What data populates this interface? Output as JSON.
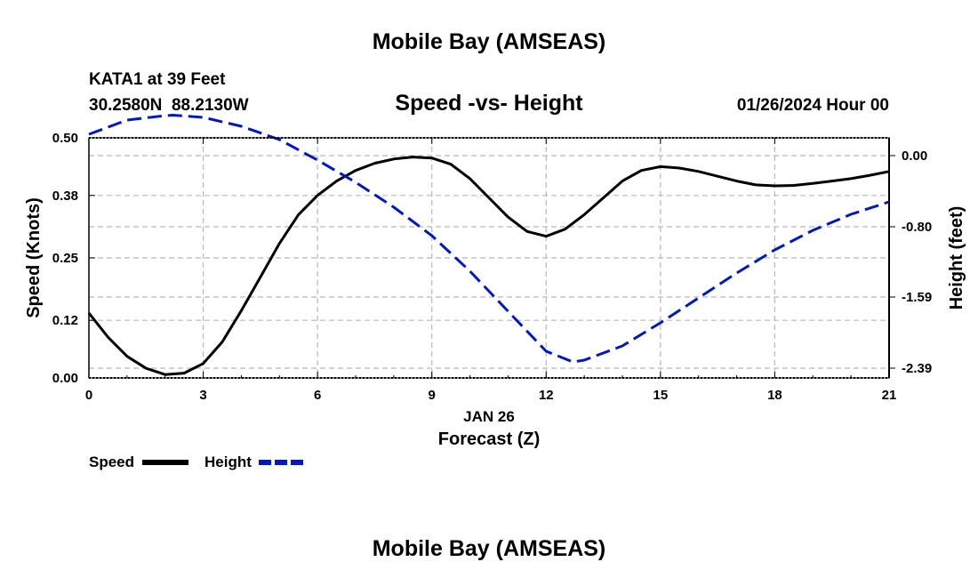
{
  "chart_data": {
    "type": "line",
    "title": "Mobile Bay (AMSEAS)",
    "subtitle": "Speed -vs- Height",
    "station": "KATA1 at 39 Feet",
    "coords": "30.2580N  88.2130W",
    "date": "01/26/2024 Hour 00",
    "xlabel": "Forecast (Z)",
    "xdate": "JAN 26",
    "ylabel": "Speed (Knots)",
    "y2label": "Height (feet)",
    "xlim": [
      0,
      21
    ],
    "ylim": [
      0,
      0.5
    ],
    "y2lim": [
      -2.5,
      0.2
    ],
    "xticks": [
      0,
      3,
      6,
      9,
      12,
      15,
      18,
      21
    ],
    "yticks": [
      "0.00",
      "0.12",
      "0.25",
      "0.38",
      "0.50"
    ],
    "y2ticks": [
      "0.00",
      "-0.80",
      "-1.59",
      "-2.39"
    ],
    "series": [
      {
        "name": "Speed",
        "color": "#000000",
        "dash": "solid",
        "x": [
          0,
          0.5,
          1,
          1.5,
          2,
          2.5,
          3,
          3.5,
          4,
          4.5,
          5,
          5.5,
          6,
          6.5,
          7,
          7.5,
          8,
          8.5,
          9,
          9.5,
          10,
          10.5,
          11,
          11.5,
          12,
          12.5,
          13,
          13.5,
          14,
          14.5,
          15,
          15.5,
          16,
          16.5,
          17,
          17.5,
          18,
          18.5,
          19,
          19.5,
          20,
          20.5,
          21
        ],
        "values": [
          0.135,
          0.085,
          0.045,
          0.02,
          0.007,
          0.01,
          0.03,
          0.075,
          0.14,
          0.21,
          0.28,
          0.34,
          0.38,
          0.41,
          0.432,
          0.447,
          0.456,
          0.46,
          0.458,
          0.445,
          0.415,
          0.375,
          0.335,
          0.305,
          0.295,
          0.31,
          0.34,
          0.375,
          0.41,
          0.432,
          0.44,
          0.437,
          0.43,
          0.42,
          0.41,
          0.402,
          0.4,
          0.401,
          0.405,
          0.41,
          0.415,
          0.422,
          0.43
        ]
      },
      {
        "name": "Height",
        "color": "#0018c8",
        "dash": "dashed",
        "x": [
          0,
          1,
          2,
          2.2,
          3,
          4,
          5,
          6,
          7,
          8,
          9,
          10,
          11,
          12,
          12.7,
          13,
          14,
          15,
          16,
          17,
          18,
          19,
          20,
          21
        ],
        "values": [
          0.24,
          0.4,
          0.45,
          0.455,
          0.43,
          0.33,
          0.18,
          -0.05,
          -0.3,
          -0.58,
          -0.9,
          -1.3,
          -1.75,
          -2.2,
          -2.32,
          -2.3,
          -2.14,
          -1.88,
          -1.6,
          -1.32,
          -1.06,
          -0.84,
          -0.66,
          -0.52
        ]
      }
    ],
    "legend": [
      {
        "label": "Speed",
        "color": "#000000",
        "dash": "solid"
      },
      {
        "label": "Height",
        "color": "#0018c8",
        "dash": "dashed"
      }
    ],
    "footer_title": "Mobile Bay (AMSEAS)"
  }
}
